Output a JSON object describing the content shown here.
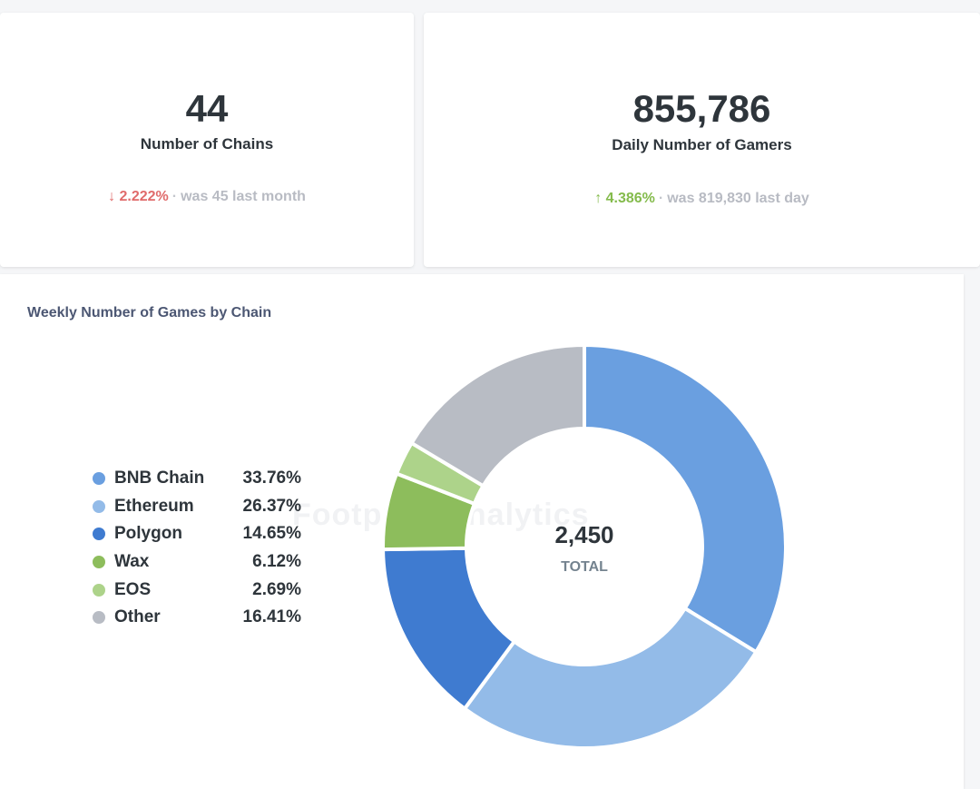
{
  "kpis": {
    "chains": {
      "value": "44",
      "label": "Number of Chains",
      "delta": "↓ 2.222%",
      "comparison": "was 45 last month"
    },
    "gamers": {
      "value": "855,786",
      "label": "Daily Number of Gamers",
      "delta": "↑ 4.386%",
      "comparison": "was 819,830 last day"
    }
  },
  "watermark": "Footprint Analytics",
  "chart_data": {
    "type": "pie",
    "title": "Weekly Number of Games by Chain",
    "center_value": "2,450",
    "center_label": "TOTAL",
    "legend_position": "left",
    "slices": [
      {
        "name": "BNB Chain",
        "value": 33.76,
        "label": "33.76%",
        "color": "#6a9fe0"
      },
      {
        "name": "Ethereum",
        "value": 26.37,
        "label": "26.37%",
        "color": "#93bbe8"
      },
      {
        "name": "Polygon",
        "value": 14.65,
        "label": "14.65%",
        "color": "#3f7bd0"
      },
      {
        "name": "Wax",
        "value": 6.12,
        "label": "6.12%",
        "color": "#8dbd5c"
      },
      {
        "name": "EOS",
        "value": 2.69,
        "label": "2.69%",
        "color": "#add38a"
      },
      {
        "name": "Other",
        "value": 16.41,
        "label": "16.41%",
        "color": "#b8bcc4"
      }
    ]
  }
}
